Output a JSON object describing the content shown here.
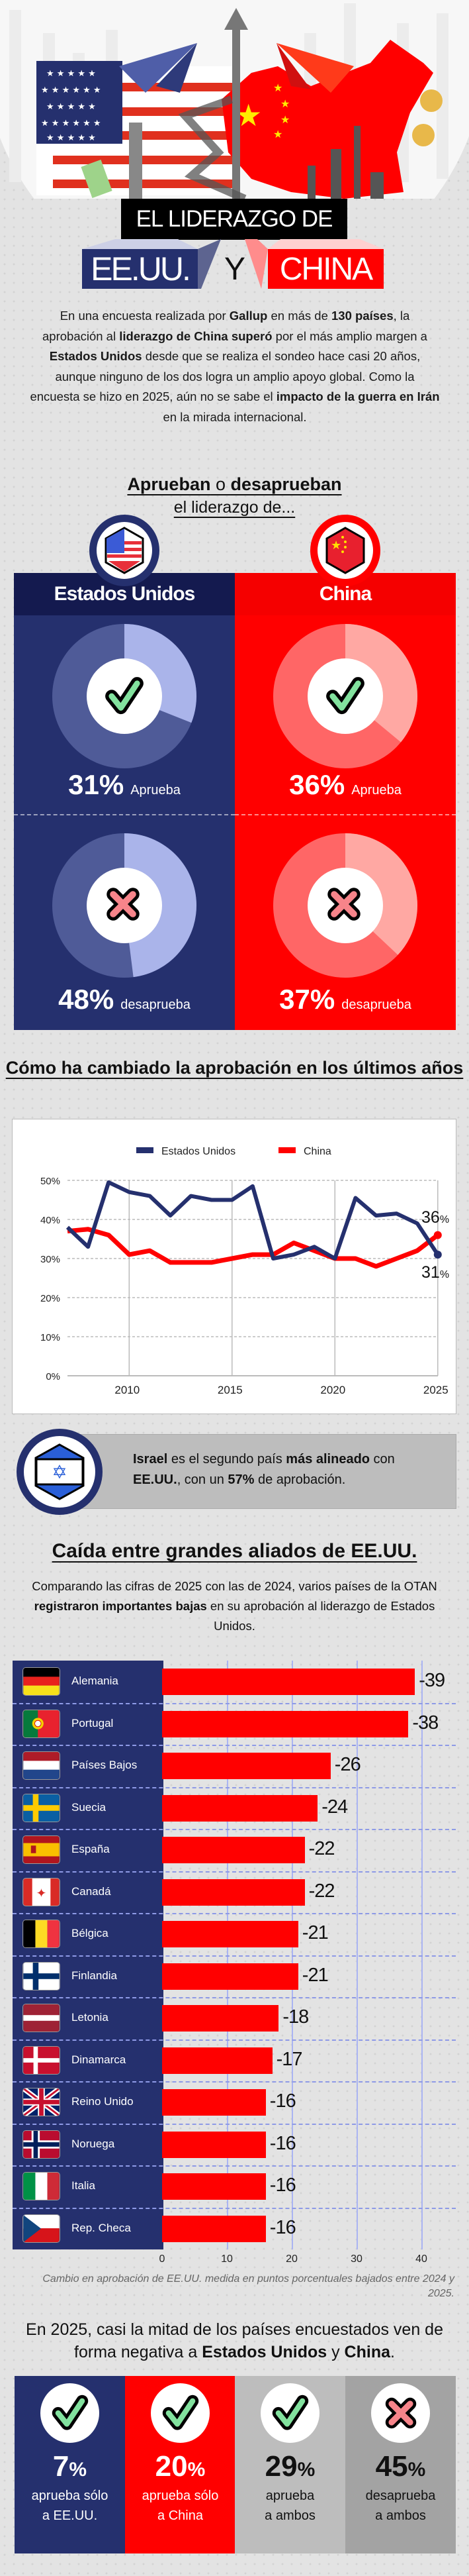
{
  "header": {
    "title_line1": "EL LIDERAZGO DE",
    "country_us": "EE.UU.",
    "connector": "Y",
    "country_china": "CHINA"
  },
  "intro": {
    "segments": [
      {
        "t": "En una encuesta realizada por "
      },
      {
        "t": "Gallup",
        "b": 1
      },
      {
        "t": " en más de "
      },
      {
        "t": "130 países",
        "b": 1
      },
      {
        "t": ", la aprobación al "
      },
      {
        "t": "liderazgo de China superó",
        "b": 1
      },
      {
        "t": " por el más amplio margen a "
      },
      {
        "t": "Estados Unidos",
        "b": 1
      },
      {
        "t": " desde que se realiza el sondeo hace casi 20 años, aunque ninguno de los dos logra un amplio apoyo global. Como la encuesta se hizo en 2025, aún no se sabe el "
      },
      {
        "t": "impacto de la guerra en Irán",
        "b": 1
      },
      {
        "t": " en la mirada internacional."
      }
    ]
  },
  "approval": {
    "heading_bold1": "Aprueban",
    "heading_mid": " o ",
    "heading_bold2": "desaprueban",
    "subheading": "el liderazgo de...",
    "percent_sign": "%",
    "approve_word": "Aprueba",
    "disapprove_word": "desaprueba",
    "panels": [
      {
        "name": "Estados Unidos",
        "flag_icon": "us-flag-icon",
        "approve": 31,
        "disapprove": 48,
        "color": "#25306e",
        "head_color": "#141a4f",
        "pie_light": "#aab4ea",
        "pie_dark": "#4f5b98"
      },
      {
        "name": "China",
        "flag_icon": "china-flag-icon",
        "approve": 36,
        "disapprove": 37,
        "color": "#ff0000",
        "head_color": "#f50000",
        "pie_light": "#ffa8a3",
        "pie_dark": "#ff6666"
      }
    ]
  },
  "trend": {
    "heading": "Cómo ha cambiado la aprobación en los últimos años"
  },
  "israel": {
    "segments": [
      {
        "t": "Israel",
        "b": 1
      },
      {
        "t": " es el segundo país "
      },
      {
        "t": "más alineado",
        "b": 1
      },
      {
        "t": " con "
      },
      {
        "t": "EE.UU.",
        "b": 1
      },
      {
        "t": ", con un "
      },
      {
        "t": "57%",
        "b": 1
      },
      {
        "t": " de aprobación."
      }
    ]
  },
  "allies": {
    "heading": "Caída entre grandes aliados de EE.UU.",
    "segments": [
      {
        "t": "Comparando las cifras de 2025 con las de 2024, varios países de la OTAN "
      },
      {
        "t": "registraron importantes bajas",
        "b": 1
      },
      {
        "t": " en su aprobación al liderazgo de Estados Unidos."
      }
    ]
  },
  "chart_data": [
    {
      "type": "line",
      "title": "Cómo ha cambiado la aprobación en los últimos años",
      "x": [
        2007,
        2008,
        2009,
        2010,
        2011,
        2012,
        2013,
        2014,
        2015,
        2016,
        2017,
        2018,
        2019,
        2020,
        2021,
        2022,
        2023,
        2024,
        2025
      ],
      "series": [
        {
          "name": "Estados Unidos",
          "color": "#25306e",
          "values": [
            38,
            33,
            49.5,
            47,
            46,
            41,
            46,
            45,
            45,
            48.5,
            30,
            31,
            33,
            30,
            45.5,
            41,
            41.5,
            39,
            31
          ]
        },
        {
          "name": "China",
          "color": "#ff0000",
          "values": [
            37,
            37.5,
            36,
            31,
            32,
            29,
            29,
            29,
            30,
            31,
            31,
            34,
            32,
            30,
            30,
            28,
            30,
            32,
            36
          ]
        }
      ],
      "yticks": [
        0,
        10,
        20,
        30,
        40,
        50
      ],
      "ytick_labels": [
        "0%",
        "10%",
        "20%",
        "30%",
        "40%",
        "50%"
      ],
      "xticks": [
        2010,
        2015,
        2020,
        2025
      ],
      "xtick_labels": [
        "2010",
        "2015",
        "2020",
        "2025"
      ],
      "ylim": [
        0,
        50
      ],
      "grid": true,
      "legend": "top",
      "end_labels": [
        {
          "series": "China",
          "value": "36",
          "suffix": "%"
        },
        {
          "series": "Estados Unidos",
          "value": "31",
          "suffix": "%"
        }
      ]
    },
    {
      "type": "bar",
      "orientation": "horizontal",
      "categories": [
        "Alemania",
        "Portugal",
        "Países Bajos",
        "Suecia",
        "España",
        "Canadá",
        "Bélgica",
        "Finlandia",
        "Letonia",
        "Dinamarca",
        "Reino Unido",
        "Noruega",
        "Italia",
        "Rep. Checa"
      ],
      "flags": [
        "de",
        "pt",
        "nl",
        "se",
        "es",
        "ca",
        "be",
        "fi",
        "lv",
        "dk",
        "gb",
        "no",
        "it",
        "cz"
      ],
      "values": [
        -39,
        -38,
        -26,
        -24,
        -22,
        -22,
        -21,
        -21,
        -18,
        -17,
        -16,
        -16,
        -16,
        -16
      ],
      "xticks": [
        0,
        10,
        20,
        30,
        40
      ],
      "xlim": [
        0,
        40
      ],
      "bar_color": "#ff0000",
      "caption": "Cambio en aprobación de EE.UU. medida en puntos porcentuales bajados entre 2024 y 2025."
    }
  ],
  "summary": {
    "segments": [
      {
        "t": "En 2025, casi la mitad de los países encuestados ven de forma negativa a "
      },
      {
        "t": "Estados Unidos",
        "b": 1
      },
      {
        "t": " y "
      },
      {
        "t": "China",
        "b": 1
      },
      {
        "t": "."
      }
    ],
    "items": [
      {
        "value": "7",
        "label1": "aprueba sólo",
        "label2": "a EE.UU.",
        "icon": "check",
        "bg": "#25306e",
        "fg": "#ffffff"
      },
      {
        "value": "20",
        "label1": "aprueba sólo",
        "label2": "a China",
        "icon": "check",
        "bg": "#ff0000",
        "fg": "#ffffff"
      },
      {
        "value": "29",
        "label1": "aprueba",
        "label2": "a ambos",
        "icon": "check",
        "bg": "#bdbdbd",
        "fg": "#111111"
      },
      {
        "value": "45",
        "label1": "desaprueba",
        "label2": "a ambos",
        "icon": "cross",
        "bg": "#a3a3a3",
        "fg": "#111111"
      }
    ]
  }
}
